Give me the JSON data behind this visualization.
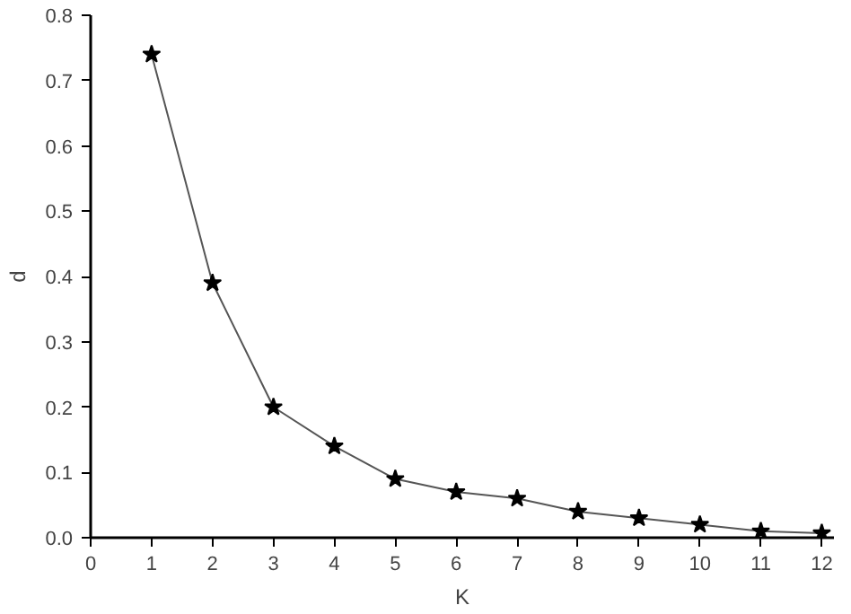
{
  "chart_data": {
    "type": "line",
    "xlabel": "K",
    "ylabel": "d",
    "x": [
      1,
      2,
      3,
      4,
      5,
      6,
      7,
      8,
      9,
      10,
      11,
      12
    ],
    "series": [
      {
        "color": "#000000",
        "values": [
          0.74,
          0.39,
          0.2,
          0.14,
          0.09,
          0.07,
          0.06,
          0.04,
          0.03,
          0.02,
          0.01,
          0.007
        ]
      }
    ],
    "xlim": [
      0,
      12.2
    ],
    "ylim": [
      0,
      0.8
    ],
    "xticks": [
      0,
      1,
      2,
      3,
      4,
      5,
      6,
      7,
      8,
      9,
      10,
      11,
      12
    ],
    "yticks": [
      {
        "value": 0,
        "label": "0.0"
      },
      0.1,
      0.2,
      0.3,
      0.4,
      0.5,
      0.6,
      0.7,
      0.8
    ],
    "grid": false,
    "marker": "star",
    "line_style": "solid"
  }
}
